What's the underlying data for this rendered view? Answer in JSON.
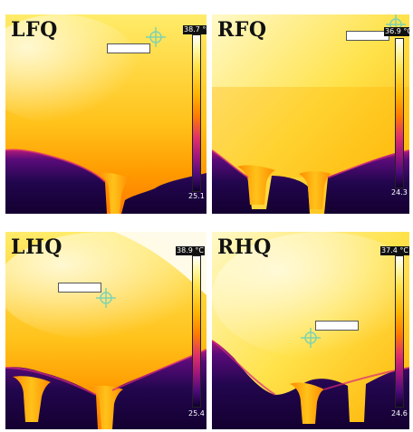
{
  "panels": [
    {
      "label": "LFQ",
      "max": "38.7 °C",
      "min": "25.1"
    },
    {
      "label": "RFQ",
      "max": "36.9 °C",
      "min": "24.3"
    },
    {
      "label": "LHQ",
      "max": "38.9 °C",
      "min": "25.4"
    },
    {
      "label": "RHQ",
      "max": "37.4 °C",
      "min": "24.6"
    }
  ],
  "colors": {
    "hot": "#ffffff",
    "warm": "#ffe34a",
    "mid": "#ff9a00",
    "cool": "#a0157e",
    "cold": "#140036",
    "crosshair": "#7fd3b0"
  },
  "icons": {
    "crosshair": "crosshair-icon"
  }
}
